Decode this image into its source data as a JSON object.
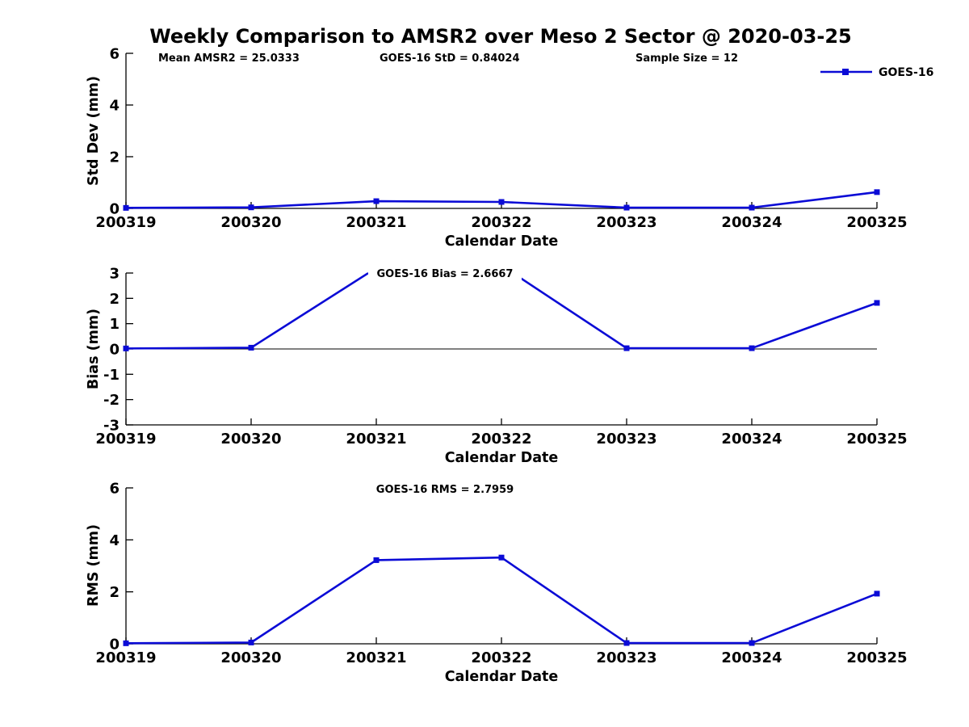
{
  "title": "Weekly Comparison to AMSR2 over Meso 2 Sector @ 2020-03-25",
  "annotations": {
    "mean_amsr2": "Mean AMSR2 = 25.0333",
    "goes_std": "GOES-16 StD = 0.84024",
    "sample_size": "Sample Size = 12",
    "goes_bias": "GOES-16 Bias  = 2.6667",
    "goes_rms": "GOES-16 RMS = 2.7959"
  },
  "legend": {
    "label": "GOES-16",
    "position": "top-right-outside",
    "marker": "filled-square-on-line"
  },
  "colors": {
    "line": "#0b0bd6",
    "axis": "#000000",
    "text": "#000000",
    "background": "#ffffff"
  },
  "chart_data": [
    {
      "type": "line",
      "name": "std-dev",
      "categories": [
        "200319",
        "200320",
        "200321",
        "200322",
        "200323",
        "200324",
        "200325"
      ],
      "series": [
        {
          "name": "GOES-16",
          "values": [
            0.02,
            0.04,
            0.28,
            0.25,
            0.03,
            0.03,
            0.63
          ]
        }
      ],
      "xlabel": "Calendar Date",
      "ylabel": "Std Dev (mm)",
      "ylim": [
        0,
        6
      ],
      "yticks": [
        0,
        2,
        4,
        6
      ],
      "grid": false,
      "zero_line": false
    },
    {
      "type": "line",
      "name": "bias",
      "categories": [
        "200319",
        "200320",
        "200321",
        "200322",
        "200323",
        "200324",
        "200325"
      ],
      "series": [
        {
          "name": "GOES-16",
          "values": [
            0.02,
            0.05,
            3.2,
            3.3,
            0.03,
            0.03,
            1.82
          ]
        }
      ],
      "xlabel": "Calendar Date",
      "ylabel": "Bias (mm)",
      "ylim": [
        -3,
        3
      ],
      "yticks": [
        -3,
        -2,
        -1,
        0,
        1,
        2,
        3
      ],
      "grid": false,
      "zero_line": true,
      "note": "values above ylim max are clipped at top of axes"
    },
    {
      "type": "line",
      "name": "rms",
      "categories": [
        "200319",
        "200320",
        "200321",
        "200322",
        "200323",
        "200324",
        "200325"
      ],
      "series": [
        {
          "name": "GOES-16",
          "values": [
            0.02,
            0.05,
            3.22,
            3.32,
            0.03,
            0.03,
            1.93
          ]
        }
      ],
      "xlabel": "Calendar Date",
      "ylabel": "RMS (mm)",
      "ylim": [
        0,
        6
      ],
      "yticks": [
        0,
        2,
        4,
        6
      ],
      "grid": false,
      "zero_line": false
    }
  ]
}
